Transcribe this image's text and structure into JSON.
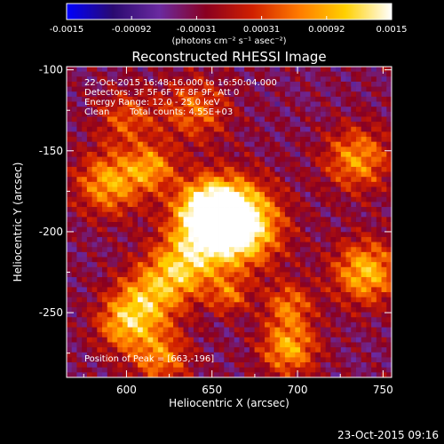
{
  "chart_data": {
    "type": "heatmap",
    "title": "Reconstructed RHESSI Image",
    "xlabel": "Heliocentric X (arcsec)",
    "ylabel": "Heliocentric Y (arcsec)",
    "xlim": [
      565,
      755
    ],
    "ylim": [
      -290,
      -98
    ],
    "xticks": [
      600,
      650,
      700,
      750
    ],
    "yticks": [
      -100,
      -150,
      -200,
      -250
    ],
    "colorbar": {
      "range": [
        -0.0015,
        0.0015
      ],
      "ticks": [
        "-0.0015",
        "-0.00092",
        "-0.00031",
        "0.00031",
        "0.00092",
        "0.0015"
      ],
      "unit_label": "(photons cm⁻² s⁻¹ asec⁻²)",
      "colormap": [
        "#0000ff",
        "#2a0a70",
        "#6a2aa0",
        "#8a0020",
        "#d02000",
        "#ff7a00",
        "#ffd000",
        "#ffffff"
      ]
    },
    "annotations": {
      "time_range": "22-Oct-2015 16:48:16.000 to 16:50:04.000",
      "detectors": "Detectors: 3F 5F 6F 7F 8F 9F, Att 0",
      "energy": "Energy Range: 12.0 - 25.0 keV",
      "method": "Clean",
      "counts": "Total counts: 4.55E+03",
      "peak": "Position of Peak = [663,-196]"
    },
    "sources": [
      {
        "x": 663,
        "y": -196,
        "sigma": 18,
        "amp": 1.0
      },
      {
        "x": 648,
        "y": -188,
        "sigma": 14,
        "amp": 0.7
      },
      {
        "x": 632,
        "y": -222,
        "sigma": 14,
        "amp": 0.55
      },
      {
        "x": 612,
        "y": -242,
        "sigma": 14,
        "amp": 0.5
      },
      {
        "x": 598,
        "y": -258,
        "sigma": 12,
        "amp": 0.45
      },
      {
        "x": 590,
        "y": -170,
        "sigma": 14,
        "amp": 0.55
      },
      {
        "x": 615,
        "y": -160,
        "sigma": 10,
        "amp": 0.45
      },
      {
        "x": 600,
        "y": -130,
        "sigma": 12,
        "amp": 0.35
      },
      {
        "x": 640,
        "y": -125,
        "sigma": 14,
        "amp": 0.4
      },
      {
        "x": 735,
        "y": -155,
        "sigma": 14,
        "amp": 0.5
      },
      {
        "x": 740,
        "y": -225,
        "sigma": 14,
        "amp": 0.6
      },
      {
        "x": 695,
        "y": -272,
        "sigma": 12,
        "amp": 0.55
      },
      {
        "x": 695,
        "y": -245,
        "sigma": 10,
        "amp": 0.4
      },
      {
        "x": 620,
        "y": -278,
        "sigma": 12,
        "amp": 0.45
      },
      {
        "x": 660,
        "y": -240,
        "sigma": 8,
        "amp": 0.35
      }
    ]
  },
  "timestamp": "23-Oct-2015 09:16"
}
